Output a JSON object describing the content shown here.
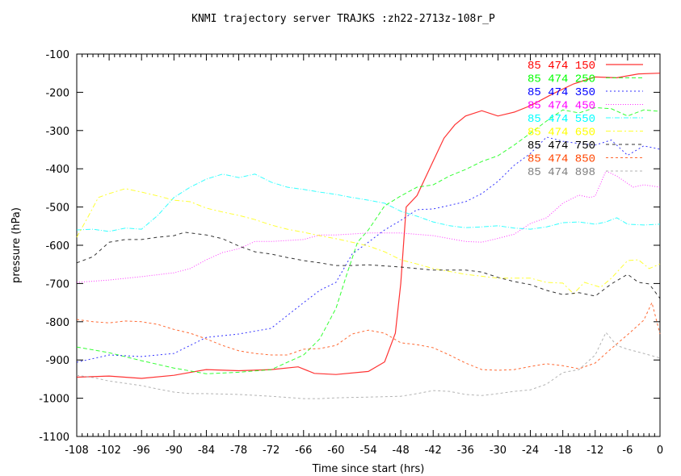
{
  "chart_data": {
    "type": "line",
    "title": "KNMI trajectory server TRAJKS :zh22-2713z-108r_P",
    "xlabel": "Time since start (hrs)",
    "ylabel": "pressure (hPa)",
    "xlim": [
      -108,
      0
    ],
    "ylim": [
      -1100,
      -100
    ],
    "xticks": [
      -108,
      -102,
      -96,
      -90,
      -84,
      -78,
      -72,
      -66,
      -60,
      -54,
      -48,
      -42,
      -36,
      -30,
      -24,
      -18,
      -12,
      -6,
      0
    ],
    "yticks": [
      -100,
      -200,
      -300,
      -400,
      -500,
      -600,
      -700,
      -800,
      -900,
      -1000,
      -1100
    ],
    "grid": false,
    "legend_placement": "top-right",
    "series": [
      {
        "name": "85 474 150",
        "color": "#ff0000",
        "dash": "",
        "x": [
          -108,
          -102,
          -96,
          -90,
          -84,
          -78,
          -72,
          -67,
          -64,
          -60,
          -54,
          -51,
          -49,
          -48,
          -47,
          -45,
          -42,
          -40,
          -38,
          -36,
          -33,
          -30,
          -27,
          -24,
          -20,
          -16,
          -12,
          -8,
          -4,
          0
        ],
        "y": [
          -945,
          -942,
          -948,
          -940,
          -925,
          -928,
          -925,
          -918,
          -935,
          -938,
          -930,
          -905,
          -830,
          -700,
          -500,
          -470,
          -380,
          -320,
          -285,
          -262,
          -248,
          -262,
          -252,
          -235,
          -205,
          -178,
          -160,
          -162,
          -152,
          -150
        ]
      },
      {
        "name": "85 474 250",
        "color": "#00ff00",
        "dash": "5,3",
        "x": [
          -108,
          -102,
          -96,
          -90,
          -84,
          -78,
          -72,
          -66,
          -63,
          -60,
          -58,
          -56,
          -54,
          -51,
          -48,
          -45,
          -42,
          -39,
          -36,
          -33,
          -30,
          -27,
          -24,
          -21,
          -18,
          -15,
          -12,
          -9,
          -6,
          -3,
          0
        ],
        "y": [
          -866,
          -881,
          -902,
          -921,
          -936,
          -932,
          -925,
          -887,
          -845,
          -765,
          -676,
          -592,
          -560,
          -497,
          -471,
          -448,
          -442,
          -419,
          -402,
          -381,
          -366,
          -338,
          -307,
          -275,
          -246,
          -254,
          -240,
          -243,
          -262,
          -246,
          -250
        ]
      },
      {
        "name": "85 474 350",
        "color": "#0000ff",
        "dash": "2,3",
        "x": [
          -108,
          -102,
          -96,
          -90,
          -84,
          -78,
          -72,
          -66,
          -63,
          -60,
          -57,
          -54,
          -51,
          -48,
          -45,
          -42,
          -36,
          -33,
          -30,
          -27,
          -24,
          -21,
          -18,
          -15,
          -12,
          -9,
          -6,
          -3,
          0
        ],
        "y": [
          -906,
          -887,
          -891,
          -883,
          -841,
          -832,
          -817,
          -750,
          -718,
          -697,
          -623,
          -592,
          -560,
          -535,
          -507,
          -505,
          -486,
          -465,
          -433,
          -391,
          -360,
          -317,
          -328,
          -334,
          -338,
          -325,
          -365,
          -340,
          -349
        ]
      },
      {
        "name": "85 474 450",
        "color": "#ff00ff",
        "dash": "1,2",
        "x": [
          -108,
          -102,
          -96,
          -90,
          -87,
          -84,
          -81,
          -78,
          -75,
          -72,
          -66,
          -63,
          -60,
          -54,
          -48,
          -42,
          -36,
          -33,
          -30,
          -27,
          -24,
          -21,
          -18,
          -15,
          -13,
          -12,
          -10,
          -8,
          -5,
          -3,
          0
        ],
        "y": [
          -697,
          -691,
          -682,
          -672,
          -661,
          -638,
          -619,
          -609,
          -590,
          -590,
          -585,
          -573,
          -573,
          -568,
          -568,
          -575,
          -590,
          -592,
          -582,
          -571,
          -543,
          -528,
          -490,
          -469,
          -475,
          -471,
          -406,
          -419,
          -448,
          -442,
          -448
        ]
      },
      {
        "name": "85 474 550",
        "color": "#00ffff",
        "dash": "6,2,1,2",
        "x": [
          -108,
          -105,
          -102,
          -99,
          -96,
          -93,
          -90,
          -87,
          -84,
          -81,
          -78,
          -75,
          -72,
          -69,
          -66,
          -63,
          -60,
          -57,
          -54,
          -51,
          -48,
          -45,
          -42,
          -39,
          -36,
          -33,
          -30,
          -27,
          -24,
          -21,
          -18,
          -15,
          -12,
          -10,
          -8,
          -6,
          -3,
          0
        ],
        "y": [
          -560,
          -558,
          -564,
          -555,
          -558,
          -522,
          -475,
          -448,
          -427,
          -414,
          -423,
          -414,
          -435,
          -448,
          -454,
          -461,
          -467,
          -475,
          -482,
          -490,
          -511,
          -524,
          -539,
          -549,
          -554,
          -552,
          -549,
          -555,
          -558,
          -552,
          -541,
          -539,
          -545,
          -539,
          -528,
          -545,
          -547,
          -545
        ]
      },
      {
        "name": "85 474 650",
        "color": "#ffff00",
        "dash": "6,3,2,3",
        "x": [
          -108,
          -106,
          -104,
          -102,
          -99,
          -96,
          -93,
          -90,
          -87,
          -84,
          -81,
          -78,
          -75,
          -72,
          -69,
          -66,
          -63,
          -60,
          -57,
          -54,
          -51,
          -48,
          -45,
          -42,
          -36,
          -30,
          -24,
          -21,
          -18,
          -16,
          -14,
          -11,
          -9,
          -6,
          -4,
          -2,
          0
        ],
        "y": [
          -579,
          -528,
          -475,
          -465,
          -452,
          -461,
          -471,
          -482,
          -486,
          -503,
          -513,
          -522,
          -533,
          -547,
          -558,
          -566,
          -575,
          -583,
          -592,
          -602,
          -617,
          -638,
          -649,
          -661,
          -676,
          -686,
          -686,
          -697,
          -699,
          -727,
          -697,
          -710,
          -686,
          -640,
          -638,
          -661,
          -649
        ]
      },
      {
        "name": "85 474 750",
        "color": "#000000",
        "dash": "4,4",
        "x": [
          -108,
          -105,
          -102,
          -99,
          -96,
          -93,
          -90,
          -88,
          -84,
          -81,
          -78,
          -75,
          -72,
          -69,
          -66,
          -63,
          -60,
          -57,
          -54,
          -48,
          -42,
          -36,
          -33,
          -30,
          -27,
          -24,
          -21,
          -18,
          -15,
          -12,
          -9,
          -6,
          -4,
          -2,
          0
        ],
        "y": [
          -646,
          -630,
          -592,
          -585,
          -585,
          -579,
          -575,
          -566,
          -573,
          -583,
          -602,
          -617,
          -623,
          -632,
          -640,
          -646,
          -653,
          -653,
          -651,
          -657,
          -665,
          -665,
          -670,
          -684,
          -695,
          -703,
          -718,
          -729,
          -724,
          -733,
          -701,
          -676,
          -697,
          -701,
          -739
        ]
      },
      {
        "name": "85 474 850",
        "color": "#ff4500",
        "dash": "3,3",
        "x": [
          -108,
          -105,
          -102,
          -99,
          -96,
          -93,
          -90,
          -87,
          -84,
          -81,
          -78,
          -75,
          -72,
          -69,
          -66,
          -63,
          -60,
          -57,
          -54,
          -51,
          -48,
          -45,
          -42,
          -39,
          -36,
          -33,
          -30,
          -27,
          -24,
          -21,
          -18,
          -15,
          -12,
          -9,
          -6,
          -3,
          -1.5,
          0
        ],
        "y": [
          -794,
          -800,
          -803,
          -798,
          -800,
          -807,
          -820,
          -830,
          -845,
          -862,
          -876,
          -883,
          -887,
          -887,
          -872,
          -870,
          -862,
          -832,
          -822,
          -830,
          -855,
          -860,
          -868,
          -887,
          -908,
          -925,
          -927,
          -925,
          -917,
          -910,
          -915,
          -923,
          -908,
          -870,
          -834,
          -796,
          -750,
          -832
        ]
      },
      {
        "name": "85 474 898",
        "color": "#a0a0a0",
        "dash": "3,3",
        "x": [
          -108,
          -105,
          -102,
          -99,
          -96,
          -93,
          -90,
          -87,
          -84,
          -78,
          -72,
          -66,
          -63,
          -60,
          -54,
          -48,
          -45,
          -42,
          -39,
          -36,
          -33,
          -30,
          -27,
          -24,
          -21,
          -18,
          -15,
          -12,
          -10,
          -8,
          -6,
          -3,
          0
        ],
        "y": [
          -940,
          -946,
          -955,
          -961,
          -967,
          -976,
          -984,
          -988,
          -988,
          -990,
          -995,
          -1001,
          -1001,
          -999,
          -997,
          -995,
          -988,
          -980,
          -982,
          -990,
          -993,
          -988,
          -982,
          -978,
          -963,
          -933,
          -925,
          -887,
          -828,
          -862,
          -872,
          -883,
          -895
        ]
      }
    ]
  },
  "legend_text_colors": [
    "#ff0000",
    "#00ff00",
    "#0000ff",
    "#ff00ff",
    "#00ffff",
    "#ffff00",
    "#000000",
    "#ff4500",
    "#808080"
  ]
}
